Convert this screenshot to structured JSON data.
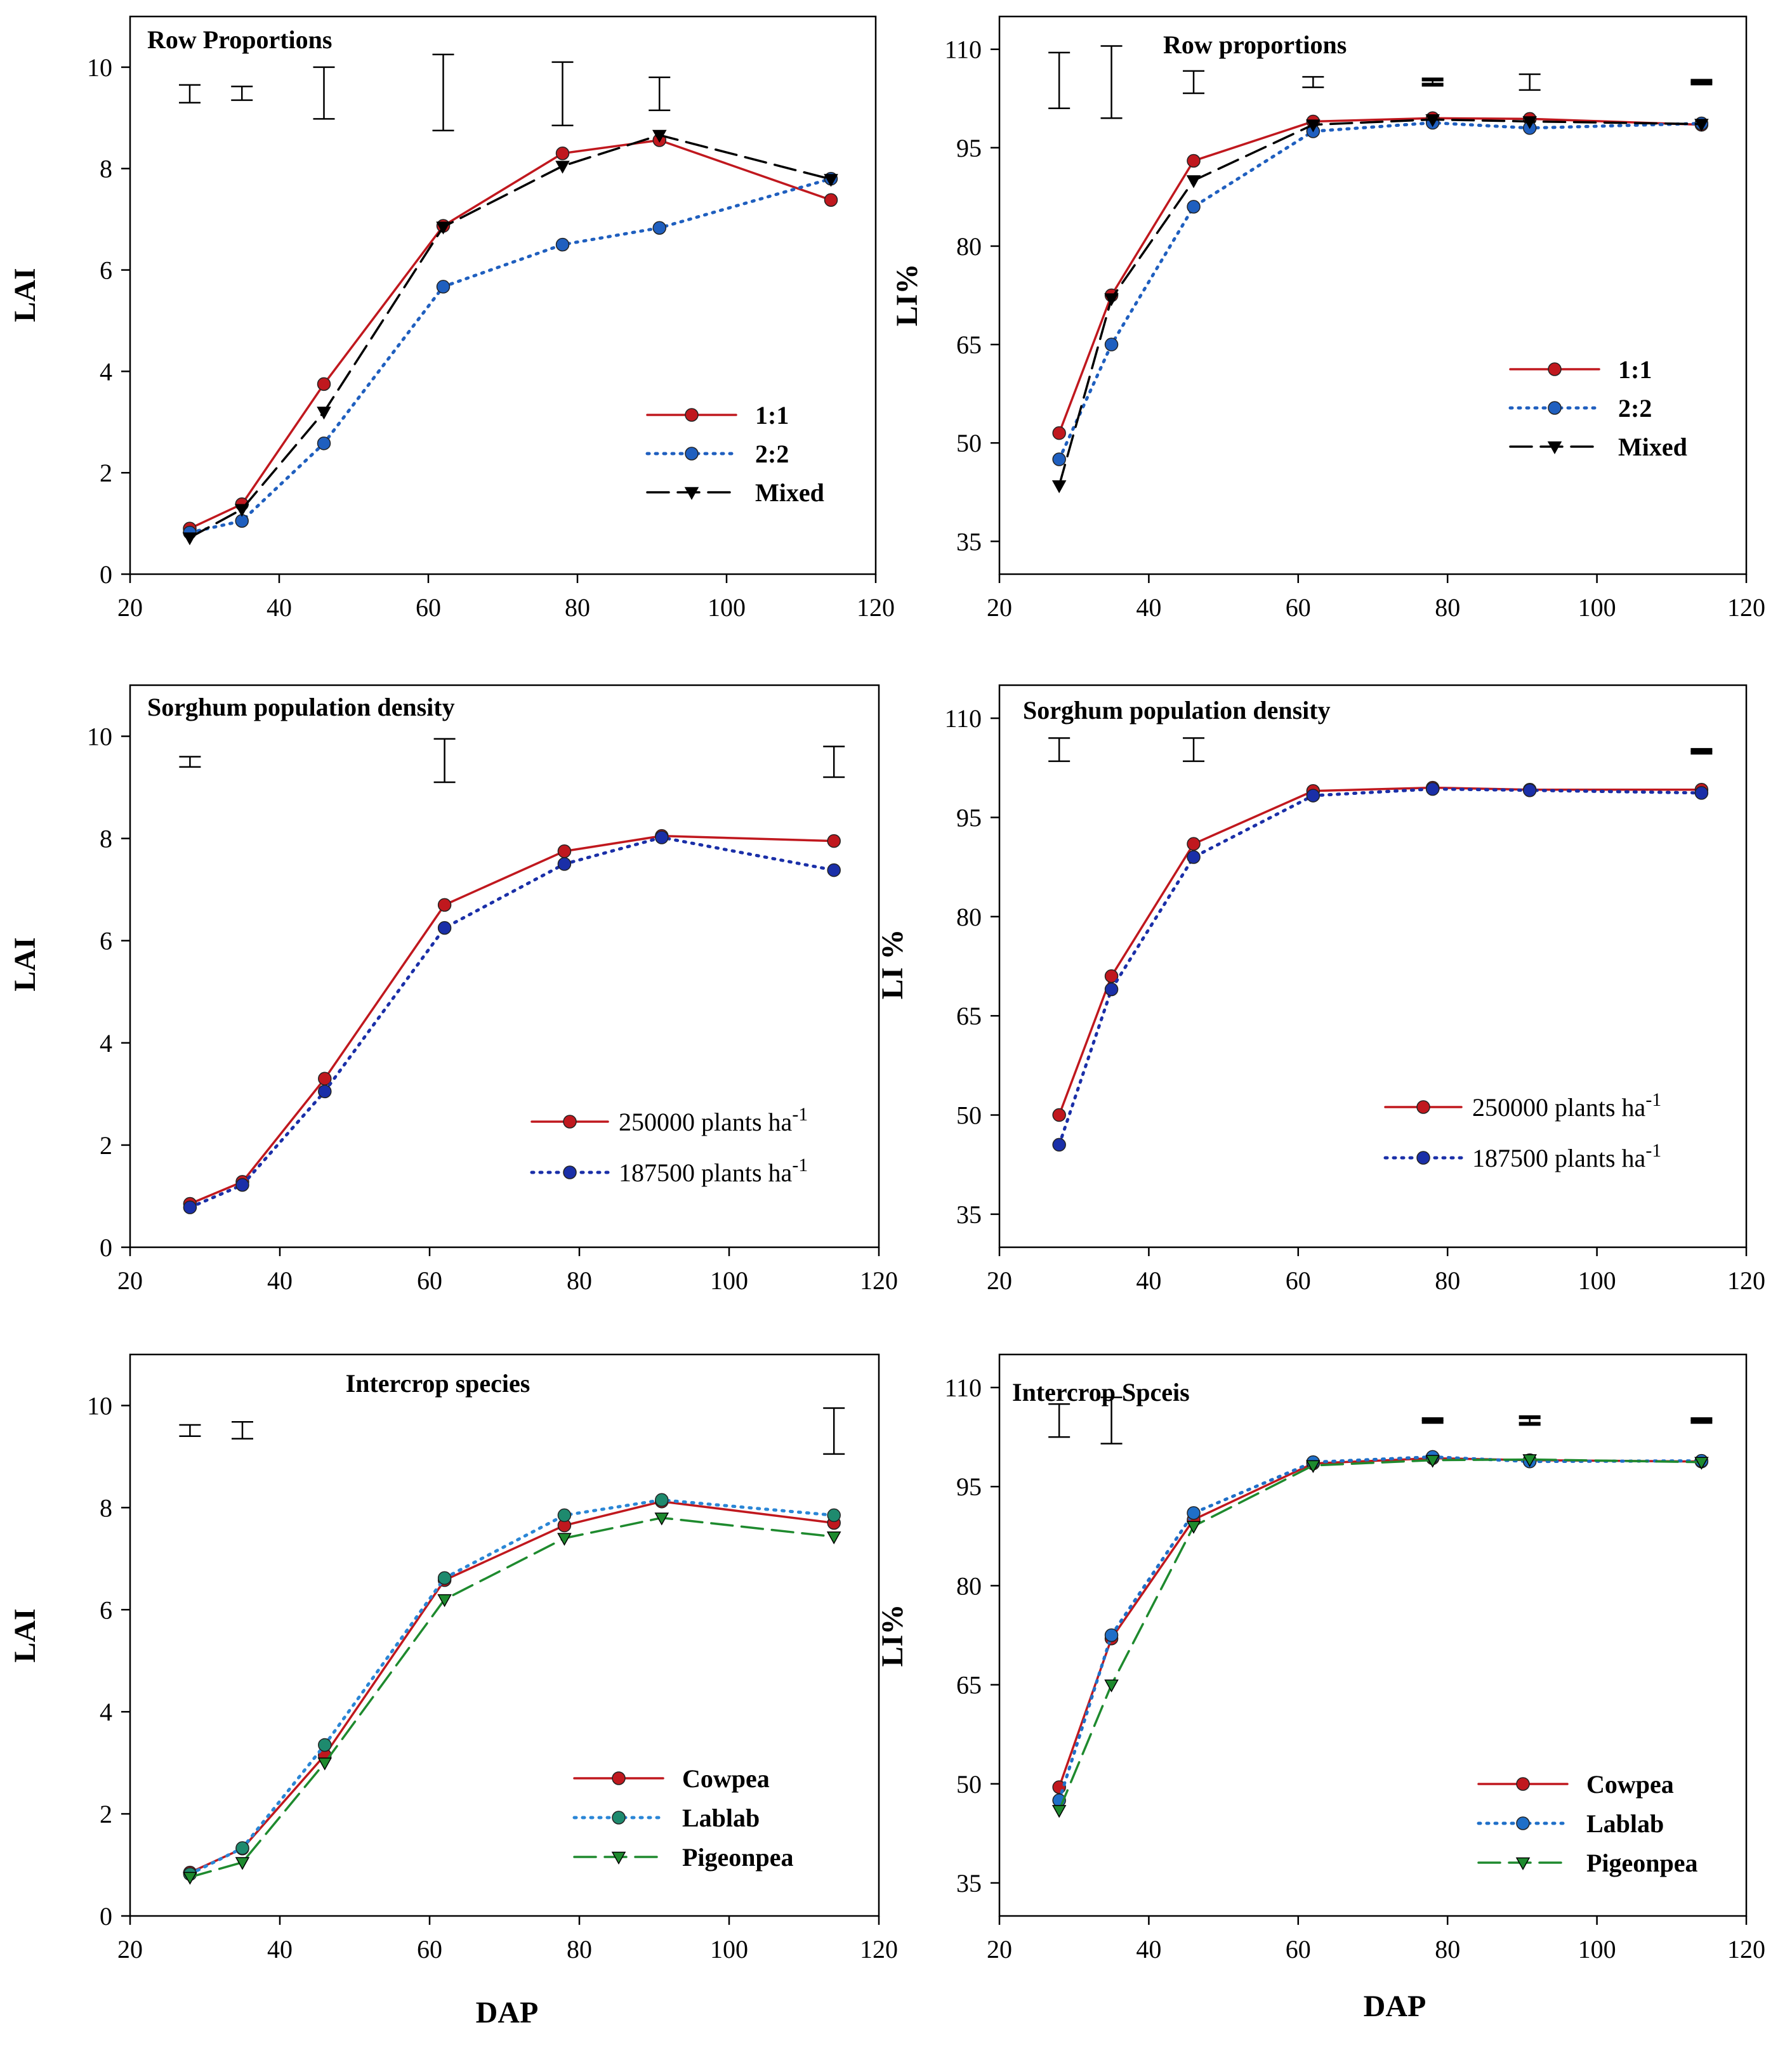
{
  "figure": {
    "x_axis_ticks": [
      20,
      40,
      60,
      80,
      100,
      120
    ],
    "shared_xlabel": "DAP"
  },
  "chart_data": [
    {
      "type": "line",
      "title": "Row Proportions",
      "xlabel": "",
      "ylabel": "LAI",
      "xlim": [
        20,
        120
      ],
      "ylim": [
        0,
        11
      ],
      "y_ticks": [
        0,
        2,
        4,
        6,
        8,
        10
      ],
      "legend_position": "lower-right",
      "x": [
        28,
        35,
        46,
        62,
        78,
        91,
        114
      ],
      "series": [
        {
          "name": "1:1",
          "color": "#c0181e",
          "dash": "solid",
          "marker": "circle",
          "values": [
            0.9,
            1.38,
            3.75,
            6.87,
            8.3,
            8.56,
            7.38
          ]
        },
        {
          "name": "2:2",
          "color": "#1f5fbf",
          "dash": "dotted",
          "marker": "circle",
          "values": [
            0.82,
            1.05,
            2.58,
            5.67,
            6.5,
            6.83,
            7.8
          ]
        },
        {
          "name": "Mixed",
          "color": "#000000",
          "dash": "dashed",
          "marker": "triangle-down",
          "values": [
            0.72,
            1.28,
            3.2,
            6.85,
            8.05,
            8.66,
            7.79
          ]
        }
      ],
      "error_bars": [
        {
          "x": 28,
          "low": 9.3,
          "high": 9.65
        },
        {
          "x": 35,
          "low": 9.35,
          "high": 9.62
        },
        {
          "x": 46,
          "low": 8.98,
          "high": 10.0
        },
        {
          "x": 62,
          "low": 8.75,
          "high": 10.25
        },
        {
          "x": 78,
          "low": 8.85,
          "high": 10.1
        },
        {
          "x": 91,
          "low": 9.15,
          "high": 9.8
        }
      ]
    },
    {
      "type": "line",
      "title": "Row proportions",
      "xlabel": "",
      "ylabel": "LI%",
      "xlim": [
        20,
        120
      ],
      "ylim": [
        30,
        115
      ],
      "y_ticks": [
        35,
        50,
        65,
        80,
        95,
        110
      ],
      "legend_position": "center-right",
      "x": [
        28,
        35,
        46,
        62,
        78,
        91,
        114
      ],
      "series": [
        {
          "name": "1:1",
          "color": "#c0181e",
          "dash": "solid",
          "marker": "circle",
          "values": [
            51.5,
            72.5,
            93.0,
            99.0,
            99.5,
            99.4,
            98.5
          ]
        },
        {
          "name": "2:2",
          "color": "#1f5fbf",
          "dash": "dotted",
          "marker": "circle",
          "values": [
            47.5,
            65.0,
            86.0,
            97.5,
            98.8,
            98.0,
            98.7
          ]
        },
        {
          "name": "Mixed",
          "color": "#000000",
          "dash": "dashed",
          "marker": "triangle-down",
          "values": [
            43.5,
            72.0,
            90.0,
            98.5,
            99.3,
            99.0,
            98.6
          ]
        }
      ],
      "error_bars": [
        {
          "x": 28,
          "low": 101,
          "high": 109.5
        },
        {
          "x": 35,
          "low": 99.5,
          "high": 110.5
        },
        {
          "x": 46,
          "low": 103.3,
          "high": 106.7
        },
        {
          "x": 62,
          "low": 104.2,
          "high": 105.8
        },
        {
          "x": 78,
          "low": 104.6,
          "high": 105.4
        },
        {
          "x": 91,
          "low": 103.8,
          "high": 106.2
        },
        {
          "x": 114,
          "low": 104.8,
          "high": 105.2
        }
      ]
    },
    {
      "type": "line",
      "title": "Sorghum population density",
      "xlabel": "",
      "ylabel": "LAI",
      "xlim": [
        20,
        120
      ],
      "ylim": [
        0,
        11
      ],
      "y_ticks": [
        0,
        2,
        4,
        6,
        8,
        10
      ],
      "legend_position": "lower-right",
      "x": [
        28,
        35,
        46,
        62,
        78,
        91,
        114
      ],
      "series": [
        {
          "name": "250000 plants ha",
          "name_superscript": "-1",
          "color": "#c0181e",
          "dash": "solid",
          "marker": "circle",
          "values": [
            0.85,
            1.28,
            3.3,
            6.7,
            7.75,
            8.05,
            7.95
          ]
        },
        {
          "name": "187500 plants ha",
          "name_superscript": "-1",
          "color": "#1a2fa8",
          "dash": "dotted",
          "marker": "circle",
          "values": [
            0.78,
            1.22,
            3.05,
            6.25,
            7.5,
            8.02,
            7.38
          ]
        }
      ],
      "error_bars": [
        {
          "x": 28,
          "low": 9.4,
          "high": 9.6
        },
        {
          "x": 62,
          "low": 9.1,
          "high": 9.95
        },
        {
          "x": 114,
          "low": 9.2,
          "high": 9.8
        }
      ]
    },
    {
      "type": "line",
      "title": "Sorghum population density",
      "xlabel": "",
      "ylabel": "LI %",
      "xlim": [
        20,
        120
      ],
      "ylim": [
        30,
        115
      ],
      "y_ticks": [
        35,
        50,
        65,
        80,
        95,
        110
      ],
      "legend_position": "lower-right",
      "x": [
        28,
        35,
        46,
        62,
        78,
        91,
        114
      ],
      "series": [
        {
          "name": "250000 plants ha",
          "name_superscript": "-1",
          "color": "#c0181e",
          "dash": "solid",
          "marker": "circle",
          "values": [
            50.0,
            71.0,
            91.0,
            99.0,
            99.5,
            99.2,
            99.2
          ]
        },
        {
          "name": "187500 plants ha",
          "name_superscript": "-1",
          "color": "#1a2fa8",
          "dash": "dotted",
          "marker": "circle",
          "values": [
            45.5,
            69.0,
            89.0,
            98.3,
            99.3,
            99.1,
            98.7
          ]
        }
      ],
      "error_bars": [
        {
          "x": 28,
          "low": 103.5,
          "high": 107
        },
        {
          "x": 46,
          "low": 103.5,
          "high": 107
        },
        {
          "x": 114,
          "low": 104.8,
          "high": 105.2
        }
      ]
    },
    {
      "type": "line",
      "title": "Intercrop species",
      "xlabel": "DAP",
      "ylabel": "LAI",
      "xlim": [
        20,
        120
      ],
      "ylim": [
        0,
        11
      ],
      "y_ticks": [
        0,
        2,
        4,
        6,
        8,
        10
      ],
      "legend_position": "lower-right",
      "x": [
        28,
        35,
        46,
        62,
        78,
        91,
        114
      ],
      "series": [
        {
          "name": "Cowpea",
          "color": "#c0181e",
          "dash": "solid",
          "marker": "circle",
          "values": [
            0.85,
            1.32,
            3.15,
            6.58,
            7.65,
            8.12,
            7.7
          ]
        },
        {
          "name": "Lablab",
          "color": "#2a86d6",
          "dash": "dotted",
          "marker": "circle-teal",
          "values": [
            0.82,
            1.33,
            3.35,
            6.62,
            7.85,
            8.15,
            7.85
          ]
        },
        {
          "name": "Pigeonpea",
          "color": "#1e8a2e",
          "dash": "dashed",
          "marker": "triangle-down",
          "values": [
            0.76,
            1.05,
            3.0,
            6.2,
            7.4,
            7.8,
            7.43
          ]
        }
      ],
      "error_bars": [
        {
          "x": 28,
          "low": 9.4,
          "high": 9.62
        },
        {
          "x": 35,
          "low": 9.35,
          "high": 9.68
        },
        {
          "x": 114,
          "low": 9.05,
          "high": 9.95
        }
      ]
    },
    {
      "type": "line",
      "title": "Intercrop Spceis",
      "xlabel": "DAP",
      "ylabel": "LI%",
      "xlim": [
        20,
        120
      ],
      "ylim": [
        30,
        115
      ],
      "y_ticks": [
        35,
        50,
        65,
        80,
        95,
        110
      ],
      "legend_position": "lower-right",
      "x": [
        28,
        35,
        46,
        62,
        78,
        91,
        114
      ],
      "series": [
        {
          "name": "Cowpea",
          "color": "#c0181e",
          "dash": "solid",
          "marker": "circle",
          "values": [
            49.5,
            72.0,
            90.0,
            98.5,
            99.3,
            99.0,
            98.8
          ]
        },
        {
          "name": "Lablab",
          "color": "#1f6fc8",
          "dash": "dotted",
          "marker": "circle",
          "values": [
            47.5,
            72.5,
            91.0,
            98.7,
            99.5,
            98.8,
            98.9
          ]
        },
        {
          "name": "Pigeonpea",
          "color": "#1e8a2e",
          "dash": "dashed",
          "marker": "triangle-down",
          "values": [
            46.0,
            65.0,
            89.0,
            98.2,
            99.0,
            99.1,
            98.7
          ]
        }
      ],
      "error_bars": [
        {
          "x": 28,
          "low": 102.5,
          "high": 107.5
        },
        {
          "x": 35,
          "low": 101.5,
          "high": 108.5
        },
        {
          "x": 78,
          "low": 104.8,
          "high": 105.2
        },
        {
          "x": 91,
          "low": 104.5,
          "high": 105.5
        },
        {
          "x": 114,
          "low": 104.8,
          "high": 105.2
        }
      ]
    }
  ]
}
